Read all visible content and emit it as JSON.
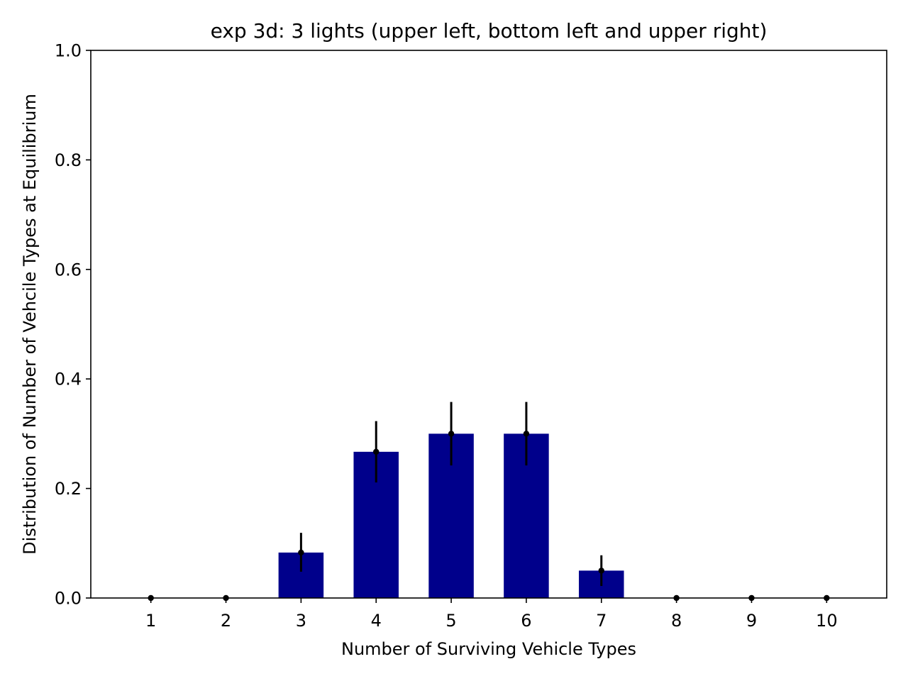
{
  "chart_data": {
    "type": "bar",
    "title": "exp 3d: 3 lights (upper left, bottom left and upper right)",
    "xlabel": "Number of Surviving Vehicle Types",
    "ylabel": "Distribution of Number of Vehcile Types at Equilibrium",
    "categories": [
      "1",
      "2",
      "3",
      "4",
      "5",
      "6",
      "7",
      "8",
      "9",
      "10"
    ],
    "values": [
      0.0,
      0.0,
      0.083,
      0.267,
      0.3,
      0.3,
      0.05,
      0.0,
      0.0,
      0.0
    ],
    "error_low": [
      0.0,
      0.0,
      0.048,
      0.211,
      0.242,
      0.242,
      0.022,
      0.0,
      0.0,
      0.0
    ],
    "error_high": [
      0.0,
      0.0,
      0.119,
      0.323,
      0.358,
      0.358,
      0.078,
      0.0,
      0.0,
      0.0
    ],
    "ylim": [
      0.0,
      1.0
    ],
    "xlim": [
      0.2,
      10.8
    ],
    "yticks": [
      "0.0",
      "0.2",
      "0.4",
      "0.6",
      "0.8",
      "1.0"
    ],
    "bar_color": "#00008b",
    "errorbar_color": "#000000",
    "grid": false,
    "legend": "none"
  }
}
